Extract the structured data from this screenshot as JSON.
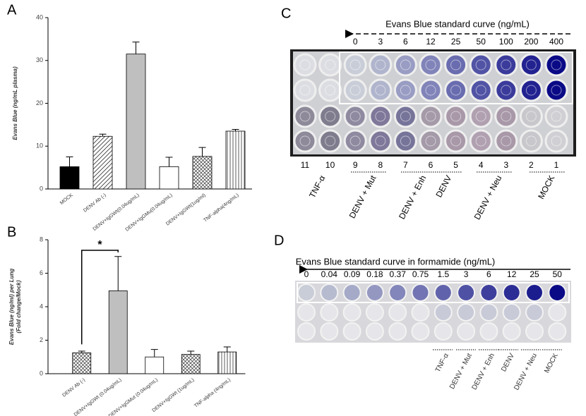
{
  "chart_data": [
    {
      "type": "bar",
      "panel": "A",
      "ylabel": "Evans Blue (ng/mL plasma)",
      "categories": [
        "MOCK",
        "DENV Ab (-)",
        "DENV+IgGWt(0.04ug/mL)",
        "DENV+IgGMu(0.04ug/mL)",
        "DENV+IgGWt(1ug/ml)",
        "TNF-alpha(4ng/mL)"
      ],
      "values": [
        5.2,
        12.3,
        31.5,
        5.2,
        7.6,
        13.5
      ],
      "errors": [
        2.3,
        0.5,
        2.8,
        2.2,
        2.1,
        0.4
      ],
      "colors": [
        "#000000",
        "#ffffff",
        "#bfbfbf",
        "#ffffff",
        "#ffffff",
        "#ffffff"
      ],
      "patterns": [
        "solid",
        "diagonal",
        "solid",
        "solid",
        "crosshatch",
        "vertical"
      ],
      "ylim": [
        0,
        40
      ],
      "yticks": [
        0,
        10,
        20,
        30,
        40
      ]
    },
    {
      "type": "bar",
      "panel": "B",
      "ylabel": [
        "Evans Blue (ng/ml) per Lung",
        "(Fold change/Mock)"
      ],
      "categories": [
        "DENV Ab (-)",
        "DENV+IgGWt (0.04ug/mL)",
        "DENV+IgGMut (0.04ug/mL)",
        "DENV+IgGWt (1ug/mL)",
        "TNF-alpha (4ng/mL)"
      ],
      "values": [
        1.25,
        4.95,
        1.0,
        1.15,
        1.3
      ],
      "errors": [
        0.1,
        2.05,
        0.45,
        0.2,
        0.3
      ],
      "colors": [
        "#ffffff",
        "#bfbfbf",
        "#ffffff",
        "#ffffff",
        "#ffffff"
      ],
      "patterns": [
        "crosshatch",
        "solid",
        "solid",
        "crosshatch",
        "vertical"
      ],
      "annotation": "*",
      "ylim": [
        0,
        8
      ],
      "yticks": [
        0,
        2,
        4,
        6,
        8
      ]
    }
  ],
  "plates": [
    {
      "panel": "C",
      "title": "Evans Blue standard curve (ng/mL)",
      "concentrations": [
        "0",
        "3",
        "6",
        "12",
        "25",
        "50",
        "100",
        "200",
        "400"
      ],
      "columns": [
        "11",
        "10",
        "9",
        "8",
        "7",
        "6",
        "5",
        "4",
        "3",
        "2",
        "1"
      ],
      "groups": [
        "TNF-α",
        "DENV + Mut",
        "DENV + Enh",
        "DENV",
        "DENV + Neu",
        "MOCK"
      ]
    },
    {
      "panel": "D",
      "title": "Evans Blue standard curve in formamide (ng/mL)",
      "concentrations": [
        "0",
        "0.04",
        "0.09",
        "0.18",
        "0.37",
        "0.75",
        "1.5",
        "3",
        "6",
        "12",
        "25",
        "50"
      ],
      "groups": [
        "TNF-α",
        "DENV + Mut",
        "DENV + Enh",
        "DENV",
        "DENV + Neu",
        "MOCK"
      ]
    }
  ]
}
